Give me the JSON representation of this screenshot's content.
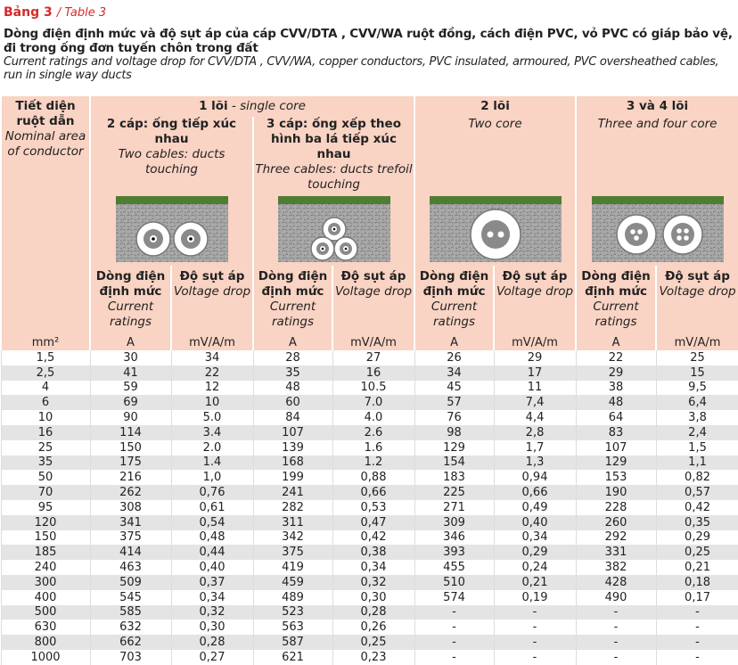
{
  "header": {
    "title": "Bảng 3",
    "title_en": "/ Table 3",
    "heading": "Dòng điện định mức và độ sụt áp của cáp CVV/DTA , CVV/WA ruột đồng, cách điện PVC, vỏ PVC có giáp bảo vệ, đi trong ống đơn tuyến chôn trong đất",
    "heading_en": "Current ratings and voltage drop for CVV/DTA , CVV/WA, copper conductors, PVC insulated, armoured, PVC oversheathed cables, run in single way ducts"
  },
  "table": {
    "conductor_header": {
      "vi": "Tiết diện ruột dẫn",
      "en": "Nominal area of conductor"
    },
    "groups": [
      {
        "vi": "1 lõi",
        "en": "- single core"
      },
      {
        "vi": "2 lõi",
        "en": "Two core"
      },
      {
        "vi": "3 và 4 lõi",
        "en": "Three and four core"
      }
    ],
    "subgroups": [
      {
        "vi": "2 cáp: ống tiếp xúc nhau",
        "en": "Two cables: ducts touching"
      },
      {
        "vi": "3 cáp: ống xếp theo hình ba lá tiếp xúc nhau",
        "en": "Three cables: ducts trefoil touching"
      }
    ],
    "columns": [
      {
        "vi": "Dòng điện định mức",
        "en": "Current ratings"
      },
      {
        "vi": "Độ sụt áp",
        "en": "Voltage drop"
      },
      {
        "vi": "Dòng điện định mức",
        "en": "Current ratings"
      },
      {
        "vi": "Độ sụt áp",
        "en": "Voltage drop"
      },
      {
        "vi": "Dòng điện định mức",
        "en": "Current ratings"
      },
      {
        "vi": "Độ sụt áp",
        "en": "Voltage drop"
      },
      {
        "vi": "Dòng điện định mức",
        "en": "Current ratings"
      },
      {
        "vi": "Độ sụt áp",
        "en": "Voltage drop"
      }
    ],
    "units": [
      "mm²",
      "A",
      "mV/A/m",
      "A",
      "mV/A/m",
      "A",
      "mV/A/m",
      "A",
      "mV/A/m"
    ],
    "rows": [
      [
        "1,5",
        "30",
        "34",
        "28",
        "27",
        "26",
        "29",
        "22",
        "25"
      ],
      [
        "2,5",
        "41",
        "22",
        "35",
        "16",
        "34",
        "17",
        "29",
        "15"
      ],
      [
        "4",
        "59",
        "12",
        "48",
        "10.5",
        "45",
        "11",
        "38",
        "9,5"
      ],
      [
        "6",
        "69",
        "10",
        "60",
        "7.0",
        "57",
        "7,4",
        "48",
        "6,4"
      ],
      [
        "10",
        "90",
        "5.0",
        "84",
        "4.0",
        "76",
        "4,4",
        "64",
        "3,8"
      ],
      [
        "16",
        "114",
        "3.4",
        "107",
        "2.6",
        "98",
        "2,8",
        "83",
        "2,4"
      ],
      [
        "25",
        "150",
        "2.0",
        "139",
        "1.6",
        "129",
        "1,7",
        "107",
        "1,5"
      ],
      [
        "35",
        "175",
        "1.4",
        "168",
        "1.2",
        "154",
        "1,3",
        "129",
        "1,1"
      ],
      [
        "50",
        "216",
        "1,0",
        "199",
        "0,88",
        "183",
        "0,94",
        "153",
        "0,82"
      ],
      [
        "70",
        "262",
        "0,76",
        "241",
        "0,66",
        "225",
        "0,66",
        "190",
        "0,57"
      ],
      [
        "95",
        "308",
        "0,61",
        "282",
        "0,53",
        "271",
        "0,49",
        "228",
        "0,42"
      ],
      [
        "120",
        "341",
        "0,54",
        "311",
        "0,47",
        "309",
        "0,40",
        "260",
        "0,35"
      ],
      [
        "150",
        "375",
        "0,48",
        "342",
        "0,42",
        "346",
        "0,34",
        "292",
        "0,29"
      ],
      [
        "185",
        "414",
        "0,44",
        "375",
        "0,38",
        "393",
        "0,29",
        "331",
        "0,25"
      ],
      [
        "240",
        "463",
        "0,40",
        "419",
        "0,34",
        "455",
        "0,24",
        "382",
        "0,21"
      ],
      [
        "300",
        "509",
        "0,37",
        "459",
        "0,32",
        "510",
        "0,21",
        "428",
        "0,18"
      ],
      [
        "400",
        "545",
        "0,34",
        "489",
        "0,30",
        "574",
        "0,19",
        "490",
        "0,17"
      ],
      [
        "500",
        "585",
        "0,32",
        "523",
        "0,28",
        "-",
        "-",
        "-",
        "-"
      ],
      [
        "630",
        "632",
        "0,30",
        "563",
        "0,26",
        "-",
        "-",
        "-",
        "-"
      ],
      [
        "800",
        "662",
        "0,28",
        "587",
        "0,25",
        "-",
        "-",
        "-",
        "-"
      ],
      [
        "1000",
        "703",
        "0,27",
        "621",
        "0,23",
        "-",
        "-",
        "-",
        "-"
      ]
    ]
  }
}
